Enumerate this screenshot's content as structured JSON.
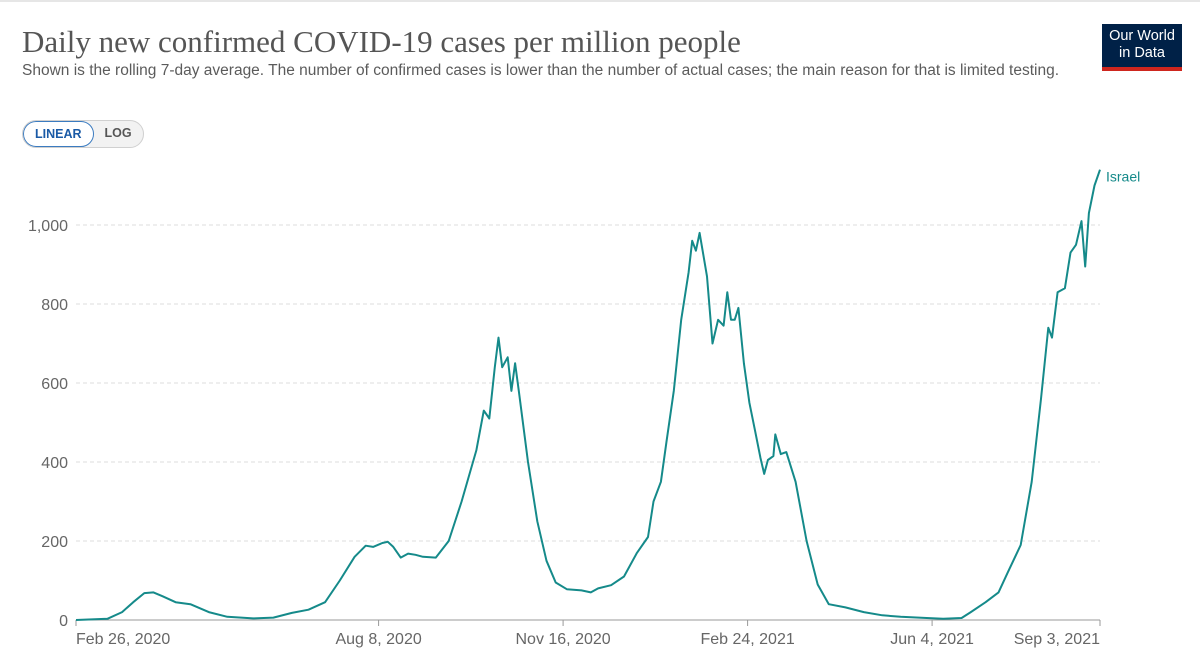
{
  "header": {
    "title": "Daily new confirmed COVID-19 cases per million people",
    "subtitle": "Shown is the rolling 7-day average. The number of confirmed cases is lower than the number of actual cases; the main reason for that is limited testing.",
    "logo_line1": "Our World",
    "logo_line2": "in Data"
  },
  "scale_toggle": {
    "linear": "LINEAR",
    "log": "LOG",
    "selected": "LINEAR"
  },
  "colors": {
    "line": "#158a8a",
    "grid": "#dddddd",
    "axis": "#666666",
    "logo_bg": "#002147",
    "logo_accent": "#ce261e"
  },
  "chart_data": {
    "type": "line",
    "title": "Daily new confirmed COVID-19 cases per million people",
    "xlabel": "",
    "ylabel": "",
    "ylim": [
      0,
      1140
    ],
    "yticks": [
      0,
      200,
      400,
      600,
      800,
      1000
    ],
    "ytick_labels": [
      "0",
      "200",
      "400",
      "600",
      "800",
      "1,000"
    ],
    "xlim": [
      "2020-02-26",
      "2021-09-03"
    ],
    "xticks": [
      "2020-02-26",
      "2020-08-08",
      "2020-11-16",
      "2021-02-24",
      "2021-06-04",
      "2021-09-03"
    ],
    "xtick_labels": [
      "Feb 26, 2020",
      "Aug 8, 2020",
      "Nov 16, 2020",
      "Feb 24, 2021",
      "Jun 4, 2021",
      "Sep 3, 2021"
    ],
    "grid": "horizontal dashed",
    "series": [
      {
        "name": "Israel",
        "points": [
          [
            "2020-02-26",
            0
          ],
          [
            "2020-03-14",
            3
          ],
          [
            "2020-03-22",
            20
          ],
          [
            "2020-03-28",
            45
          ],
          [
            "2020-04-03",
            68
          ],
          [
            "2020-04-08",
            70
          ],
          [
            "2020-04-13",
            60
          ],
          [
            "2020-04-20",
            45
          ],
          [
            "2020-04-28",
            40
          ],
          [
            "2020-05-08",
            20
          ],
          [
            "2020-05-18",
            8
          ],
          [
            "2020-06-01",
            4
          ],
          [
            "2020-06-12",
            6
          ],
          [
            "2020-06-22",
            18
          ],
          [
            "2020-07-01",
            26
          ],
          [
            "2020-07-10",
            45
          ],
          [
            "2020-07-18",
            100
          ],
          [
            "2020-07-26",
            160
          ],
          [
            "2020-08-01",
            188
          ],
          [
            "2020-08-05",
            185
          ],
          [
            "2020-08-10",
            195
          ],
          [
            "2020-08-13",
            198
          ],
          [
            "2020-08-16",
            185
          ],
          [
            "2020-08-20",
            158
          ],
          [
            "2020-08-24",
            168
          ],
          [
            "2020-08-28",
            165
          ],
          [
            "2020-09-01",
            160
          ],
          [
            "2020-09-08",
            158
          ],
          [
            "2020-09-15",
            200
          ],
          [
            "2020-09-22",
            300
          ],
          [
            "2020-09-30",
            430
          ],
          [
            "2020-10-04",
            530
          ],
          [
            "2020-10-07",
            510
          ],
          [
            "2020-10-10",
            640
          ],
          [
            "2020-10-12",
            715
          ],
          [
            "2020-10-14",
            640
          ],
          [
            "2020-10-17",
            665
          ],
          [
            "2020-10-19",
            580
          ],
          [
            "2020-10-21",
            650
          ],
          [
            "2020-10-23",
            580
          ],
          [
            "2020-10-28",
            400
          ],
          [
            "2020-11-02",
            250
          ],
          [
            "2020-11-07",
            150
          ],
          [
            "2020-11-12",
            95
          ],
          [
            "2020-11-18",
            78
          ],
          [
            "2020-11-26",
            75
          ],
          [
            "2020-12-01",
            70
          ],
          [
            "2020-12-05",
            80
          ],
          [
            "2020-12-12",
            88
          ],
          [
            "2020-12-19",
            110
          ],
          [
            "2020-12-26",
            170
          ],
          [
            "2021-01-01",
            210
          ],
          [
            "2021-01-04",
            300
          ],
          [
            "2021-01-08",
            350
          ],
          [
            "2021-01-11",
            450
          ],
          [
            "2021-01-15",
            580
          ],
          [
            "2021-01-19",
            760
          ],
          [
            "2021-01-23",
            880
          ],
          [
            "2021-01-25",
            960
          ],
          [
            "2021-01-27",
            935
          ],
          [
            "2021-01-29",
            980
          ],
          [
            "2021-02-02",
            870
          ],
          [
            "2021-02-05",
            700
          ],
          [
            "2021-02-08",
            760
          ],
          [
            "2021-02-11",
            745
          ],
          [
            "2021-02-13",
            830
          ],
          [
            "2021-02-15",
            760
          ],
          [
            "2021-02-17",
            760
          ],
          [
            "2021-02-19",
            790
          ],
          [
            "2021-02-22",
            650
          ],
          [
            "2021-02-25",
            550
          ],
          [
            "2021-02-28",
            480
          ],
          [
            "2021-03-03",
            410
          ],
          [
            "2021-03-05",
            370
          ],
          [
            "2021-03-07",
            405
          ],
          [
            "2021-03-10",
            415
          ],
          [
            "2021-03-11",
            470
          ],
          [
            "2021-03-14",
            420
          ],
          [
            "2021-03-17",
            425
          ],
          [
            "2021-03-22",
            350
          ],
          [
            "2021-03-28",
            200
          ],
          [
            "2021-04-03",
            90
          ],
          [
            "2021-04-09",
            40
          ],
          [
            "2021-04-18",
            32
          ],
          [
            "2021-04-28",
            20
          ],
          [
            "2021-05-08",
            12
          ],
          [
            "2021-05-18",
            8
          ],
          [
            "2021-06-01",
            5
          ],
          [
            "2021-06-10",
            3
          ],
          [
            "2021-06-20",
            5
          ],
          [
            "2021-06-25",
            20
          ],
          [
            "2021-07-03",
            45
          ],
          [
            "2021-07-10",
            70
          ],
          [
            "2021-07-15",
            120
          ],
          [
            "2021-07-22",
            190
          ],
          [
            "2021-07-28",
            350
          ],
          [
            "2021-08-02",
            560
          ],
          [
            "2021-08-06",
            740
          ],
          [
            "2021-08-08",
            715
          ],
          [
            "2021-08-11",
            830
          ],
          [
            "2021-08-15",
            840
          ],
          [
            "2021-08-18",
            930
          ],
          [
            "2021-08-21",
            950
          ],
          [
            "2021-08-24",
            1010
          ],
          [
            "2021-08-26",
            895
          ],
          [
            "2021-08-28",
            1030
          ],
          [
            "2021-08-31",
            1100
          ],
          [
            "2021-09-03",
            1140
          ]
        ]
      }
    ]
  }
}
